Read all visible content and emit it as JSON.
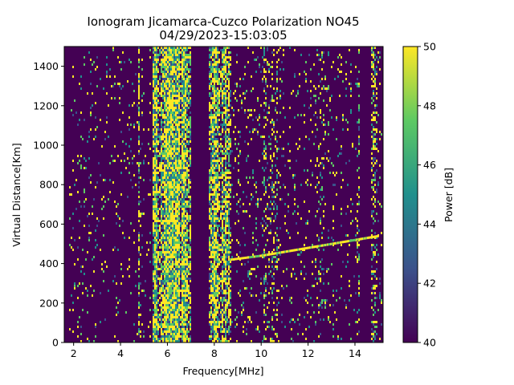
{
  "chart_data": {
    "type": "heatmap",
    "title": "Ionogram Jicamarca-Cuzco Polarization NO45",
    "subtitle": "04/29/2023-15:03:05",
    "xlabel": "Frequency[MHz]",
    "ylabel": "Virtual Distance[Km]",
    "xlim": [
      1.6,
      15.2
    ],
    "ylim": [
      0,
      1500
    ],
    "x_ticks": [
      "2",
      "4",
      "6",
      "8",
      "10",
      "12",
      "14"
    ],
    "x_tick_values": [
      2,
      4,
      6,
      8,
      10,
      12,
      14
    ],
    "y_ticks": [
      "0",
      "200",
      "400",
      "600",
      "800",
      "1000",
      "1200",
      "1400"
    ],
    "y_tick_values": [
      0,
      200,
      400,
      600,
      800,
      1000,
      1200,
      1400
    ],
    "colorbar": {
      "label": "Power [dB]",
      "range": [
        40,
        50
      ],
      "ticks": [
        "40",
        "42",
        "44",
        "46",
        "48",
        "50"
      ],
      "tick_values": [
        40,
        42,
        44,
        46,
        48,
        50
      ],
      "colormap": [
        "#440154",
        "#3b528b",
        "#21908d",
        "#5dc963",
        "#fde725"
      ]
    },
    "background_color": "#440154",
    "grid": false,
    "bands": [
      {
        "x0": 5.4,
        "x1": 7.0,
        "density": 0.9
      },
      {
        "x0": 7.8,
        "x1": 8.7,
        "density": 0.8
      },
      {
        "x0": 4.75,
        "x1": 4.8,
        "density": 0.55
      },
      {
        "x0": 10.1,
        "x1": 10.7,
        "density": 0.28
      },
      {
        "x0": 12.4,
        "x1": 12.7,
        "density": 0.22
      },
      {
        "x0": 14.7,
        "x1": 14.95,
        "density": 0.3
      },
      {
        "x0": 14.1,
        "x1": 14.2,
        "density": 0.2
      },
      {
        "x0": 1.8,
        "x1": 3.2,
        "density": 0.06
      },
      {
        "x0": 3.2,
        "x1": 5.3,
        "density": 0.05
      },
      {
        "x0": 8.7,
        "x1": 10.1,
        "density": 0.1
      },
      {
        "x0": 10.7,
        "x1": 12.4,
        "density": 0.08
      },
      {
        "x0": 12.7,
        "x1": 14.1,
        "density": 0.06
      },
      {
        "x0": 14.95,
        "x1": 15.2,
        "density": 0.12
      }
    ],
    "trace": [
      {
        "x": 8.7,
        "y": 420
      },
      {
        "x": 10.0,
        "y": 440
      },
      {
        "x": 11.0,
        "y": 460
      },
      {
        "x": 12.0,
        "y": 480
      },
      {
        "x": 13.0,
        "y": 500
      },
      {
        "x": 14.0,
        "y": 520
      },
      {
        "x": 15.0,
        "y": 540
      }
    ]
  }
}
